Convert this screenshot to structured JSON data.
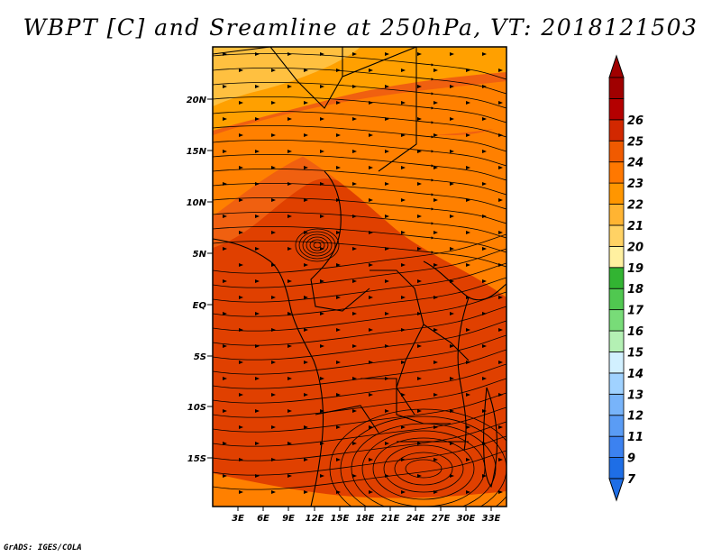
{
  "title": "WBPT [C] and Sreamline at 250hPa, VT: 2018121503",
  "footer": "GrADS: IGES/COLA",
  "map": {
    "lat_labels": [
      "20N",
      "15N",
      "10N",
      "5N",
      "EQ",
      "5S",
      "10S",
      "15S"
    ],
    "lon_labels": [
      "3E",
      "6E",
      "9E",
      "12E",
      "15E",
      "18E",
      "21E",
      "24E",
      "27E",
      "30E",
      "33E"
    ],
    "field_colors": {
      "c20": "#ffc040",
      "c21": "#ffa000",
      "c22": "#ff8000",
      "c23": "#f06010",
      "c24": "#e04000"
    },
    "streamline_color": "#000000"
  },
  "colorbar": {
    "labels": [
      "7",
      "9",
      "11",
      "12",
      "13",
      "14",
      "15",
      "16",
      "17",
      "18",
      "19",
      "20",
      "21",
      "22",
      "23",
      "24",
      "25",
      "26"
    ],
    "colors": [
      "#1e6ee6",
      "#3c82f0",
      "#5a9cf5",
      "#78b4fa",
      "#a0d2ff",
      "#d2f0ff",
      "#b4f0b4",
      "#78dc78",
      "#50c850",
      "#32b432",
      "#fff0a0",
      "#ffd264",
      "#ffb432",
      "#ff9600",
      "#ff7800",
      "#f05a00",
      "#d22800",
      "#b40000",
      "#a00000"
    ]
  }
}
